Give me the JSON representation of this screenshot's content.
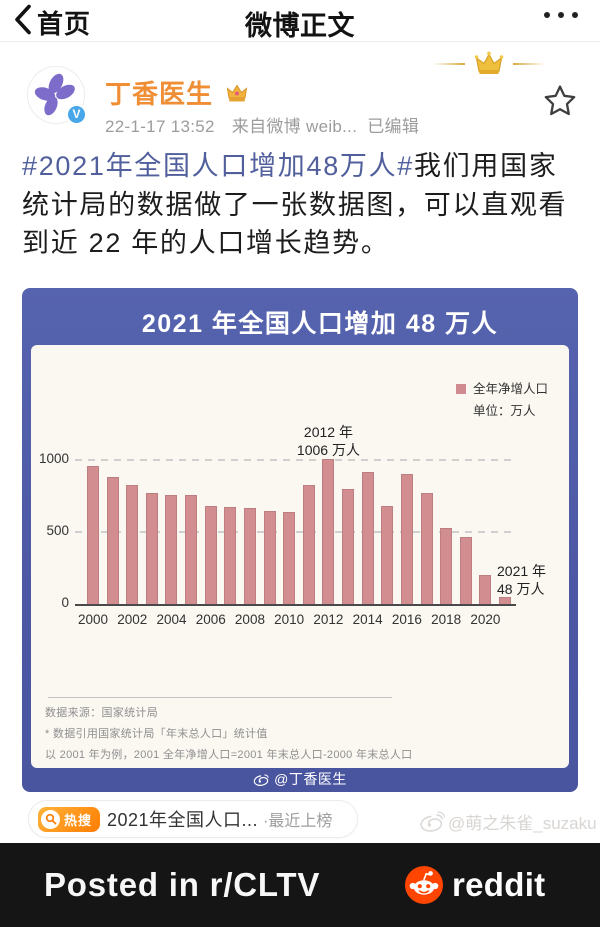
{
  "nav": {
    "back_label": "首页",
    "title": "微博正文"
  },
  "post": {
    "author": "丁香医生",
    "timestamp": "22-1-17 13:52",
    "source": "来自微博 weib...",
    "edited_label": "已编辑",
    "hashtag": "#2021年全国人口增加48万人#",
    "text": "我们用国家统计局的数据做了一张数据图，可以直观看到近 22 年的人口增长趋势。"
  },
  "chart_card": {
    "title": "2021 年全国人口增加 48 万人",
    "watermark": "@丁香医生",
    "note_source": "数据来源：国家统计局",
    "note_line2": "* 数据引用国家统计局「年末总人口」统计值",
    "note_line3": "以 2001 年为例，2001 全年净增人口=2001 年末总人口-2000 年末总人口",
    "colors": {
      "card_blue": "#4c58a3",
      "panel_cream": "#fbf8f2",
      "bar_pink": "#d18d90"
    }
  },
  "chart_data": {
    "type": "bar",
    "title": "2021 年全国人口增加 48 万人",
    "legend": [
      "全年净增人口"
    ],
    "unit_label": "单位：万人",
    "ylabel": "",
    "xlabel": "",
    "ylim": [
      0,
      1100
    ],
    "yticks": [
      0,
      500,
      1000
    ],
    "grid": "dashed-horizontal",
    "legend_position": "top-right",
    "categories": [
      2000,
      2001,
      2002,
      2003,
      2004,
      2005,
      2006,
      2007,
      2008,
      2009,
      2010,
      2011,
      2012,
      2013,
      2014,
      2015,
      2016,
      2017,
      2018,
      2019,
      2020,
      2021
    ],
    "values": [
      957,
      884,
      825,
      772,
      757,
      757,
      681,
      675,
      666,
      644,
      641,
      823,
      1006,
      800,
      920,
      680,
      903,
      772,
      530,
      462,
      204,
      48
    ],
    "xtick_labels": [
      "2000",
      "2002",
      "2004",
      "2006",
      "2008",
      "2010",
      "2012",
      "2014",
      "2016",
      "2018",
      "2020"
    ],
    "annotations": [
      {
        "year": 2012,
        "lines": [
          "2012 年",
          "1006 万人"
        ]
      },
      {
        "year": 2021,
        "lines": [
          "2021 年",
          "48 万人"
        ]
      }
    ]
  },
  "hot_search": {
    "badge": "热搜",
    "topic": "2021年全国人口...",
    "status": "·最近上榜"
  },
  "watermark_user": "@萌之朱雀_suzaku",
  "reddit_bar": {
    "caption": "Posted in r/CLTV",
    "brand": "reddit",
    "accent": "#ff4500"
  }
}
